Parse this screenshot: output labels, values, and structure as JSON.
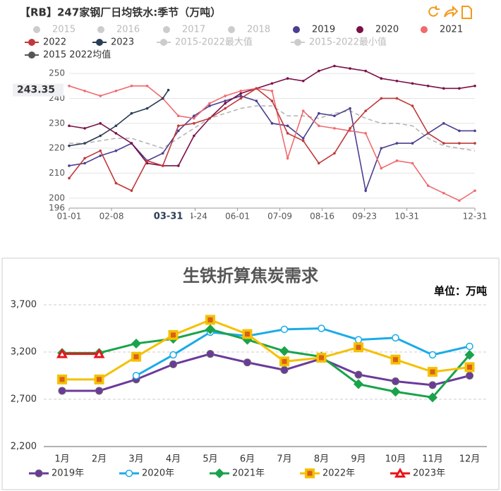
{
  "chart_data": [
    {
      "type": "line",
      "title": "【RB】247家钢厂日均铁水:季节（万吨）",
      "x": [
        1,
        15,
        29,
        43,
        57,
        71,
        85,
        99,
        113,
        127,
        141,
        155,
        169,
        183,
        197,
        211,
        225,
        239,
        253,
        267,
        281,
        295,
        309,
        323,
        337,
        351,
        365
      ],
      "xlim": [
        1,
        365
      ],
      "xticks": [
        {
          "value": 1,
          "label": "01-01"
        },
        {
          "value": 39,
          "label": "02-08"
        },
        {
          "value": 114,
          "label": "04-24"
        },
        {
          "value": 152,
          "label": "06-01"
        },
        {
          "value": 190,
          "label": "07-09"
        },
        {
          "value": 228,
          "label": "08-16"
        },
        {
          "value": 266,
          "label": "09-23"
        },
        {
          "value": 304,
          "label": "10-31"
        },
        {
          "value": 365,
          "label": "12-31"
        }
      ],
      "ylim": [
        196,
        254
      ],
      "yticks": [
        196,
        200,
        210,
        220,
        230,
        240,
        250
      ],
      "grid": true,
      "pointer": {
        "x": {
          "value": 90,
          "label": "03-31"
        },
        "y": 243.35
      },
      "series": [
        {
          "name": "2015",
          "color": "#cccccc",
          "hidden": true
        },
        {
          "name": "2016",
          "color": "#cccccc",
          "hidden": true
        },
        {
          "name": "2017",
          "color": "#cccccc",
          "hidden": true
        },
        {
          "name": "2018",
          "color": "#cccccc",
          "hidden": true
        },
        {
          "name": "2019",
          "color": "#4a3f8f",
          "values": [
            213,
            214,
            217,
            219,
            222,
            215,
            218,
            227,
            233,
            237,
            239,
            241,
            239,
            230,
            229,
            224,
            234,
            233,
            236,
            203,
            220,
            222,
            222,
            226,
            230,
            227,
            227
          ]
        },
        {
          "name": "2020",
          "color": "#7b1048",
          "values": [
            229,
            228,
            230,
            226,
            222,
            214,
            213,
            213,
            225,
            232,
            238,
            242,
            244,
            246,
            248,
            247,
            251,
            253,
            252,
            251,
            248,
            247,
            246,
            245,
            244,
            244,
            245
          ]
        },
        {
          "name": "2021",
          "color": "#f06a6e",
          "values": [
            245,
            243,
            241,
            243,
            245,
            245,
            240,
            233,
            232,
            238,
            241,
            243,
            244,
            243,
            216,
            235,
            229,
            228,
            227,
            226,
            212,
            215,
            214,
            205,
            202,
            199,
            203
          ]
        },
        {
          "name": "2022",
          "color": "#c0393b",
          "legend_line": true,
          "values": [
            208,
            216,
            219,
            206,
            203,
            215,
            213,
            229,
            230,
            232,
            236,
            240,
            244,
            239,
            226,
            223,
            214,
            218,
            228,
            235,
            240,
            240,
            237,
            226,
            222,
            222,
            222
          ]
        },
        {
          "name": "2023",
          "color": "#2b3d55",
          "legend_line": true,
          "x": [
            1,
            15,
            29,
            43,
            57,
            71,
            85,
            90
          ],
          "values": [
            221,
            222,
            225,
            229,
            234,
            236,
            240,
            243.35
          ]
        },
        {
          "name": "2015-2022最大值",
          "color": "#cccccc",
          "hidden": true,
          "legend_line": true
        },
        {
          "name": "2015-2022最小值",
          "color": "#cccccc",
          "hidden": true,
          "legend_line": true
        },
        {
          "name": "2015 2022均值",
          "color": "#555555",
          "legend_line": true,
          "dashed": true,
          "values": [
            222,
            222,
            223,
            224,
            224,
            222,
            220,
            224,
            228,
            232,
            234,
            236,
            237,
            237,
            233,
            233,
            232,
            234,
            235,
            232,
            230,
            230,
            229,
            224,
            221,
            220,
            219
          ]
        }
      ]
    },
    {
      "type": "line",
      "title": "生铁折算焦炭需求",
      "unit": "单位：万吨",
      "categories": [
        "1月",
        "2月",
        "3月",
        "4月",
        "5月",
        "6月",
        "7月",
        "8月",
        "9月",
        "10月",
        "11月",
        "12月"
      ],
      "ylim": [
        2200,
        3700
      ],
      "yticks": [
        {
          "value": 2200,
          "label": "2,200"
        },
        {
          "value": 2700,
          "label": "2,700"
        },
        {
          "value": 3200,
          "label": "3,200"
        },
        {
          "value": 3700,
          "label": "3,700"
        }
      ],
      "grid": true,
      "series": [
        {
          "name": "2019年",
          "color": "#6b3a9b",
          "marker": "circle",
          "values": [
            2790,
            2790,
            2910,
            3070,
            3180,
            3090,
            3010,
            3130,
            2960,
            2890,
            2850,
            2950
          ]
        },
        {
          "name": "2020年",
          "color": "#1aabe8",
          "marker": "open-circle",
          "values": [
            null,
            null,
            2950,
            3170,
            3410,
            3370,
            3440,
            3450,
            3330,
            3350,
            3170,
            3260
          ]
        },
        {
          "name": "2021年",
          "color": "#1aa34a",
          "marker": "diamond",
          "values": [
            3190,
            3190,
            3290,
            3340,
            3440,
            3330,
            3210,
            3150,
            2860,
            2780,
            2720,
            3170
          ]
        },
        {
          "name": "2022年",
          "color": "#f5c000",
          "marker": "square",
          "values": [
            2910,
            2910,
            3150,
            3380,
            3540,
            3390,
            3100,
            3140,
            3250,
            3120,
            2990,
            3040
          ]
        },
        {
          "name": "2023年",
          "color": "#e8141b",
          "marker": "triangle",
          "values": [
            3180,
            3180,
            null,
            null,
            null,
            null,
            null,
            null,
            null,
            null,
            null,
            null
          ]
        }
      ]
    }
  ]
}
